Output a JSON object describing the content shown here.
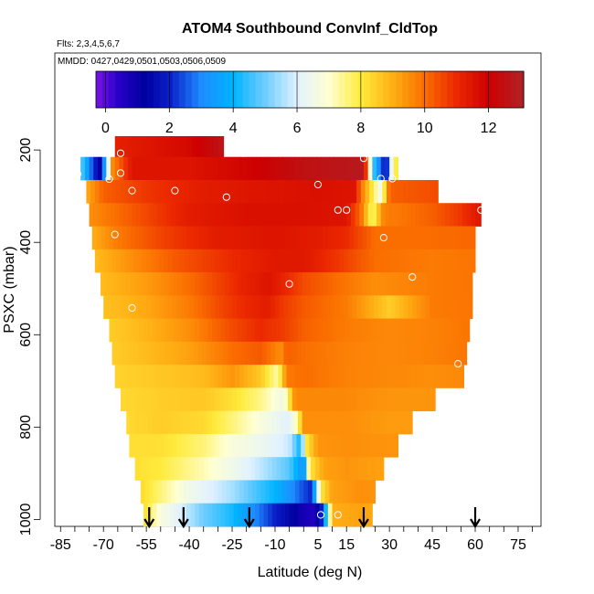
{
  "chart_data": {
    "type": "heatmap",
    "title": "ATOM4 Southbound ConvInf_CldTop",
    "subtitle_flights": "Flts: 2,3,4,5,6,7",
    "subtitle_dates": "MMDD: 0427,0429,0501,0503,0506,0509",
    "xlabel": "Latitude (deg N)",
    "ylabel": "PSXC (mbar)",
    "x_ticks": [
      -85,
      -70,
      -55,
      -40,
      -25,
      -10,
      5,
      15,
      30,
      45,
      60,
      75
    ],
    "y_ticks": [
      200,
      400,
      600,
      800,
      1000
    ],
    "xlim": [
      -87,
      83
    ],
    "ylim": [
      1015,
      -10
    ],
    "colorbar": {
      "ticks": [
        0,
        2,
        4,
        6,
        8,
        10,
        12
      ],
      "range": [
        -0.3,
        13.1
      ],
      "placement": "top"
    },
    "pressure_bins": [
      [
        170,
        215
      ],
      [
        215,
        265
      ],
      [
        265,
        315
      ],
      [
        315,
        365
      ],
      [
        365,
        415
      ],
      [
        415,
        465
      ],
      [
        465,
        515
      ],
      [
        515,
        565
      ],
      [
        565,
        615
      ],
      [
        615,
        665
      ],
      [
        665,
        715
      ],
      [
        715,
        765
      ],
      [
        765,
        815
      ],
      [
        815,
        865
      ],
      [
        865,
        915
      ],
      [
        915,
        965
      ],
      [
        965,
        1015
      ]
    ],
    "rows": [
      {
        "lat_min": -66,
        "lat_max": -28,
        "knots": [
          [
            -66,
            11.2
          ],
          [
            -40,
            11.8
          ],
          [
            -28,
            12.6
          ]
        ]
      },
      {
        "lat_min": -78,
        "lat_max": 33,
        "knots": [
          [
            -78,
            5
          ],
          [
            -74,
            2.5
          ],
          [
            -71,
            1
          ],
          [
            -69,
            4.5
          ],
          [
            -67,
            9.5
          ],
          [
            -60,
            11.5
          ],
          [
            -40,
            11.5
          ],
          [
            -20,
            11.9
          ],
          [
            0,
            12.5
          ],
          [
            21,
            12.8
          ],
          [
            24,
            5
          ],
          [
            27,
            2.5
          ],
          [
            29,
            1.5
          ],
          [
            31,
            7
          ],
          [
            33,
            8.5
          ]
        ]
      },
      {
        "lat_min": -76,
        "lat_max": 47,
        "knots": [
          [
            -76,
            9
          ],
          [
            -70,
            10.2
          ],
          [
            -55,
            10.8
          ],
          [
            -35,
            11.3
          ],
          [
            -15,
            11.5
          ],
          [
            5,
            11.6
          ],
          [
            18,
            11.5
          ],
          [
            20,
            10
          ],
          [
            23,
            8.5
          ],
          [
            27,
            6.5
          ],
          [
            30,
            10.2
          ],
          [
            47,
            10.5
          ]
        ]
      },
      {
        "lat_min": -75,
        "lat_max": 62,
        "knots": [
          [
            -75,
            9.5
          ],
          [
            -60,
            10.3
          ],
          [
            -40,
            11.3
          ],
          [
            -20,
            11.6
          ],
          [
            0,
            11.6
          ],
          [
            15,
            11.5
          ],
          [
            20,
            10
          ],
          [
            24,
            7.5
          ],
          [
            28,
            9.7
          ],
          [
            45,
            10.2
          ],
          [
            55,
            10.8
          ],
          [
            62,
            11.5
          ]
        ]
      },
      {
        "lat_min": -74,
        "lat_max": 60,
        "knots": [
          [
            -74,
            9
          ],
          [
            -65,
            9.8
          ],
          [
            -50,
            10.6
          ],
          [
            -30,
            11.3
          ],
          [
            -10,
            11.5
          ],
          [
            5,
            11.3
          ],
          [
            15,
            11
          ],
          [
            25,
            10
          ],
          [
            40,
            10
          ],
          [
            60,
            10.1
          ]
        ]
      },
      {
        "lat_min": -73,
        "lat_max": 60,
        "knots": [
          [
            -73,
            8.8
          ],
          [
            -60,
            9.5
          ],
          [
            -45,
            10.3
          ],
          [
            -25,
            11
          ],
          [
            -10,
            11.4
          ],
          [
            0,
            11.4
          ],
          [
            12,
            10.8
          ],
          [
            25,
            10
          ],
          [
            45,
            9.8
          ],
          [
            60,
            9.9
          ]
        ]
      },
      {
        "lat_min": -71,
        "lat_max": 59,
        "knots": [
          [
            -71,
            8.8
          ],
          [
            -55,
            9.3
          ],
          [
            -40,
            10
          ],
          [
            -20,
            11.2
          ],
          [
            -12,
            11.5
          ],
          [
            -8,
            11.2
          ],
          [
            0,
            10.5
          ],
          [
            12,
            10
          ],
          [
            25,
            9.5
          ],
          [
            45,
            9.8
          ],
          [
            59,
            9.9
          ]
        ]
      },
      {
        "lat_min": -70,
        "lat_max": 59,
        "knots": [
          [
            -70,
            8.7
          ],
          [
            -55,
            9.1
          ],
          [
            -40,
            9.8
          ],
          [
            -25,
            10.8
          ],
          [
            -13,
            11.3
          ],
          [
            -8,
            10.8
          ],
          [
            0,
            10.3
          ],
          [
            15,
            9.8
          ],
          [
            30,
            8.5
          ],
          [
            45,
            9.8
          ],
          [
            59,
            9.9
          ]
        ]
      },
      {
        "lat_min": -68,
        "lat_max": 58,
        "knots": [
          [
            -68,
            8.5
          ],
          [
            -55,
            8.9
          ],
          [
            -40,
            9.5
          ],
          [
            -25,
            10.5
          ],
          [
            -15,
            11
          ],
          [
            -7,
            10.7
          ],
          [
            0,
            10.2
          ],
          [
            15,
            9.8
          ],
          [
            30,
            9.6
          ],
          [
            45,
            9.7
          ],
          [
            58,
            9.9
          ]
        ]
      },
      {
        "lat_min": -67,
        "lat_max": 57,
        "knots": [
          [
            -67,
            8.5
          ],
          [
            -55,
            8.8
          ],
          [
            -40,
            9.2
          ],
          [
            -25,
            10
          ],
          [
            -15,
            10.3
          ],
          [
            -8,
            9.5
          ],
          [
            -6,
            10.2
          ],
          [
            0,
            10
          ],
          [
            15,
            9.7
          ],
          [
            30,
            9.6
          ],
          [
            45,
            9.7
          ],
          [
            57,
            9.9
          ]
        ]
      },
      {
        "lat_min": -66,
        "lat_max": 56,
        "knots": [
          [
            -66,
            8.4
          ],
          [
            -50,
            8.6
          ],
          [
            -35,
            8.8
          ],
          [
            -25,
            9.4
          ],
          [
            -15,
            8.6
          ],
          [
            -9,
            7.2
          ],
          [
            -6,
            9.8
          ],
          [
            0,
            10
          ],
          [
            15,
            9.7
          ],
          [
            30,
            9.6
          ],
          [
            45,
            9.5
          ],
          [
            56,
            9.6
          ]
        ]
      },
      {
        "lat_min": -64,
        "lat_max": 46,
        "knots": [
          [
            -64,
            8.3
          ],
          [
            -50,
            8.5
          ],
          [
            -35,
            8.6
          ],
          [
            -25,
            8.2
          ],
          [
            -15,
            7.5
          ],
          [
            -7,
            6.5
          ],
          [
            -3,
            9.6
          ],
          [
            15,
            9.6
          ],
          [
            30,
            9.4
          ],
          [
            46,
            9.4
          ]
        ]
      },
      {
        "lat_min": -62,
        "lat_max": 38,
        "knots": [
          [
            -62,
            8.3
          ],
          [
            -50,
            8.5
          ],
          [
            -35,
            8.3
          ],
          [
            -25,
            7.6
          ],
          [
            -15,
            6.8
          ],
          [
            -5,
            6
          ],
          [
            -2,
            7.5
          ],
          [
            0,
            9.5
          ],
          [
            15,
            9.5
          ],
          [
            30,
            9.3
          ],
          [
            38,
            9.3
          ]
        ]
      },
      {
        "lat_min": -61,
        "lat_max": 33,
        "knots": [
          [
            -61,
            8.2
          ],
          [
            -50,
            8.2
          ],
          [
            -35,
            7.6
          ],
          [
            -25,
            6.8
          ],
          [
            -15,
            6.4
          ],
          [
            -5,
            5.8
          ],
          [
            -1,
            4
          ],
          [
            1,
            8
          ],
          [
            5,
            9.4
          ],
          [
            15,
            9.5
          ],
          [
            33,
            9.4
          ]
        ]
      },
      {
        "lat_min": -59,
        "lat_max": 28,
        "knots": [
          [
            -59,
            8.2
          ],
          [
            -50,
            8
          ],
          [
            -35,
            7.2
          ],
          [
            -25,
            6.5
          ],
          [
            -15,
            5.7
          ],
          [
            -5,
            4.8
          ],
          [
            0,
            3
          ],
          [
            2,
            8
          ],
          [
            7,
            9.2
          ],
          [
            15,
            9.4
          ],
          [
            28,
            9.2
          ]
        ]
      },
      {
        "lat_min": -57,
        "lat_max": 25,
        "knots": [
          [
            -57,
            8.3
          ],
          [
            -50,
            7.6
          ],
          [
            -40,
            6.5
          ],
          [
            -25,
            5.5
          ],
          [
            -10,
            4
          ],
          [
            0,
            2.4
          ],
          [
            3,
            2
          ],
          [
            6,
            8
          ],
          [
            10,
            9.2
          ],
          [
            20,
            9.5
          ],
          [
            25,
            9.4
          ]
        ]
      },
      {
        "lat_min": -56,
        "lat_max": 24,
        "knots": [
          [
            -56,
            8.3
          ],
          [
            -50,
            6.8
          ],
          [
            -35,
            5
          ],
          [
            -25,
            4.2
          ],
          [
            -10,
            2
          ],
          [
            0,
            0.8
          ],
          [
            4,
            0.5
          ],
          [
            7,
            2.5
          ],
          [
            10,
            9
          ],
          [
            20,
            9.2
          ],
          [
            24,
            9.1
          ]
        ]
      }
    ],
    "markers": [
      {
        "lat": -64,
        "p": 207
      },
      {
        "lat": -21,
        "p": 207
      },
      {
        "lat": -79,
        "p": 252
      },
      {
        "lat": -64,
        "p": 250
      },
      {
        "lat": -68,
        "p": 263
      },
      {
        "lat": 21,
        "p": 218
      },
      {
        "lat": 27,
        "p": 262
      },
      {
        "lat": 31,
        "p": 262
      },
      {
        "lat": -60,
        "p": 288
      },
      {
        "lat": -45,
        "p": 288
      },
      {
        "lat": -27,
        "p": 302
      },
      {
        "lat": 5,
        "p": 275
      },
      {
        "lat": 12,
        "p": 330
      },
      {
        "lat": 15,
        "p": 330
      },
      {
        "lat": 62,
        "p": 330
      },
      {
        "lat": -66,
        "p": 383
      },
      {
        "lat": 28,
        "p": 390
      },
      {
        "lat": -5,
        "p": 490
      },
      {
        "lat": 38,
        "p": 475
      },
      {
        "lat": -60,
        "p": 542
      },
      {
        "lat": 54,
        "p": 663
      },
      {
        "lat": 6,
        "p": 990
      },
      {
        "lat": 12,
        "p": 990
      }
    ],
    "arrows_lat": [
      -54,
      -42,
      -19,
      21,
      60
    ]
  }
}
